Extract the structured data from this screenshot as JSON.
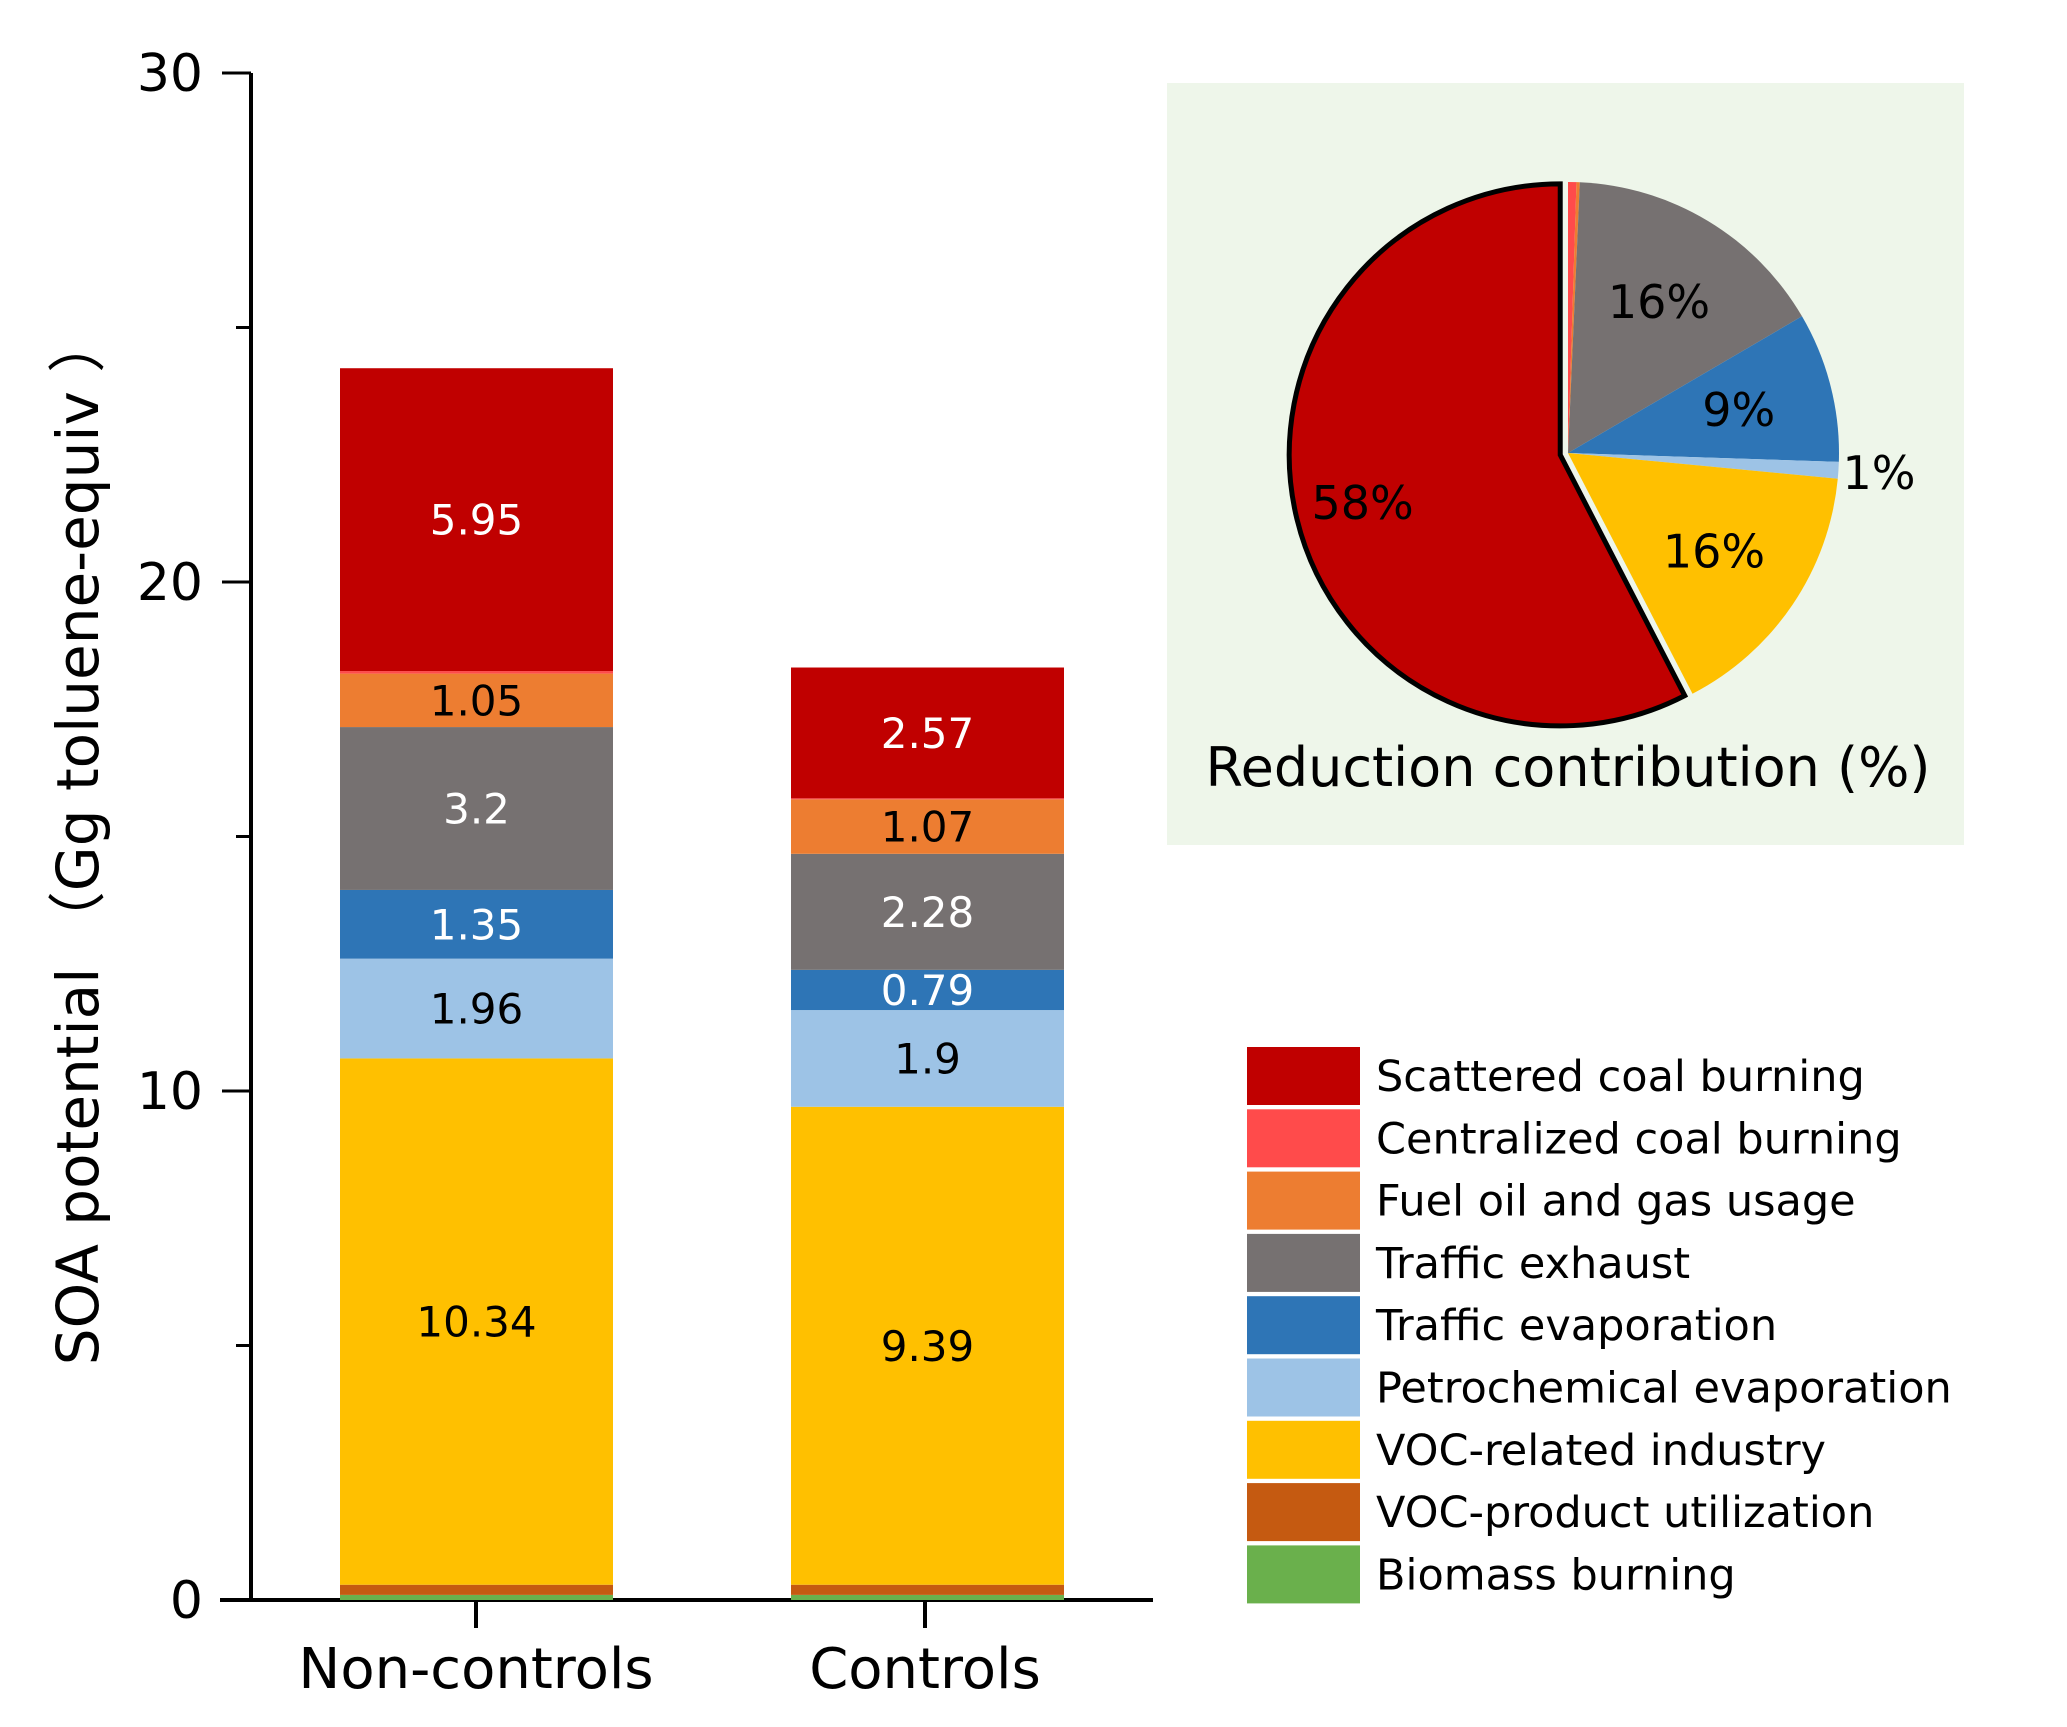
{
  "chart_data": [
    {
      "type": "bar",
      "stacked": true,
      "ylabel": "SOA potential （Gg toluene-equiv ）",
      "xlabel": "",
      "ylim": [
        0,
        30
      ],
      "yticks": [
        0,
        10,
        20,
        30
      ],
      "categories": [
        "Non-controls",
        "Controls"
      ],
      "series": [
        {
          "name": "Biomass burning",
          "color": "#6ab04c",
          "values": [
            0.1,
            0.1
          ],
          "labels": [
            "",
            ""
          ]
        },
        {
          "name": "VOC-product utilization",
          "color": "#c55a11",
          "values": [
            0.2,
            0.2
          ],
          "labels": [
            "",
            ""
          ]
        },
        {
          "name": "VOC-related industry",
          "color": "#ffc000",
          "values": [
            10.34,
            9.39
          ],
          "labels": [
            "10.34",
            "9.39"
          ],
          "label_color": "#000000"
        },
        {
          "name": "Petrochemical evaporation",
          "color": "#9dc3e6",
          "values": [
            1.96,
            1.9
          ],
          "labels": [
            "1.96",
            "1.9"
          ],
          "label_color": "#000000"
        },
        {
          "name": "Traffic evaporation",
          "color": "#2e75b6",
          "values": [
            1.35,
            0.79
          ],
          "labels": [
            "1.35",
            "0.79"
          ],
          "label_color": "#ffffff"
        },
        {
          "name": "Traffic exhaust",
          "color": "#767171",
          "values": [
            3.2,
            2.28
          ],
          "labels": [
            "3.2",
            "2.28"
          ],
          "label_color": "#ffffff"
        },
        {
          "name": "Fuel oil and gas usage",
          "color": "#ed7d31",
          "values": [
            1.05,
            1.07
          ],
          "labels": [
            "1.05",
            "1.07"
          ],
          "label_color": "#000000"
        },
        {
          "name": "Centralized coal burning",
          "color": "#ff4b4b",
          "values": [
            0.05,
            0.02
          ],
          "labels": [
            "",
            ""
          ]
        },
        {
          "name": "Scattered coal burning",
          "color": "#c00000",
          "values": [
            5.95,
            2.57
          ],
          "labels": [
            "5.95",
            "2.57"
          ],
          "label_color": "#ffffff"
        }
      ],
      "legend": {
        "placement": "bottom-right",
        "entries": [
          {
            "name": "Scattered coal burning",
            "color": "#c00000"
          },
          {
            "name": "Centralized coal burning",
            "color": "#ff4b4b"
          },
          {
            "name": "Fuel oil and gas usage",
            "color": "#ed7d31"
          },
          {
            "name": "Traffic exhaust",
            "color": "#767171"
          },
          {
            "name": "Traffic evaporation",
            "color": "#2e75b6"
          },
          {
            "name": "Petrochemical evaporation",
            "color": "#9dc3e6"
          },
          {
            "name": "VOC-related industry",
            "color": "#ffc000"
          },
          {
            "name": "VOC-product utilization",
            "color": "#c55a11"
          },
          {
            "name": "Biomass burning",
            "color": "#6ab04c"
          }
        ]
      }
    },
    {
      "type": "pie",
      "title": "Reduction contribution (%)",
      "panel_color": "#eef6ea",
      "placement": "top-right",
      "slices": [
        {
          "name": "Centralized coal burning",
          "value": 0.5,
          "color": "#ff4b4b",
          "label": ""
        },
        {
          "name": "Fuel oil and gas usage",
          "value": 0.2,
          "color": "#ed7d31",
          "label": ""
        },
        {
          "name": "Traffic exhaust",
          "value": 16,
          "color": "#767171",
          "label": "16%"
        },
        {
          "name": "Traffic evaporation",
          "value": 9,
          "color": "#2e75b6",
          "label": "9%"
        },
        {
          "name": "Petrochemical evaporation",
          "value": 1,
          "color": "#9dc3e6",
          "label": "1%"
        },
        {
          "name": "VOC-related industry",
          "value": 16,
          "color": "#ffc000",
          "label": "16%"
        },
        {
          "name": "Scattered coal burning",
          "value": 58,
          "color": "#c00000",
          "label": "58%",
          "exploded": true
        }
      ]
    }
  ]
}
